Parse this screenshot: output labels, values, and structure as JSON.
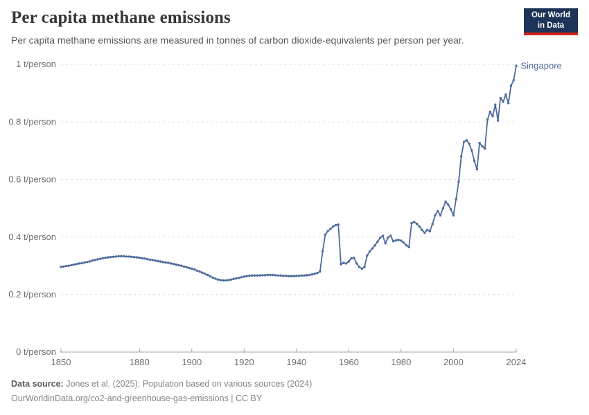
{
  "header": {
    "title": "Per capita methane emissions",
    "subtitle": "Per capita methane emissions are measured in tonnes of carbon dioxide-equivalents per person per year.",
    "logo": {
      "line1": "Our World",
      "line2": "in Data"
    }
  },
  "colors": {
    "series_line": "#4c6a9c",
    "grid_line": "#dcdcdc",
    "axis_line": "#a3a3a3",
    "tick_label": "#6e6e6e",
    "logo_bg": "#1d3458",
    "logo_accent": "#d1231b"
  },
  "chart_data": {
    "type": "line",
    "title": "Per capita methane emissions",
    "unit": "t/person",
    "grid": "dashed-horizontal",
    "xlim": [
      1850,
      2024
    ],
    "ylim": [
      0,
      1
    ],
    "x_ticks": [
      1850,
      1880,
      1900,
      1920,
      1940,
      1960,
      1980,
      2000,
      2024
    ],
    "y_ticks": [
      {
        "value": 0,
        "label": "0 t/person"
      },
      {
        "value": 0.2,
        "label": "0.2 t/person"
      },
      {
        "value": 0.4,
        "label": "0.4 t/person"
      },
      {
        "value": 0.6,
        "label": "0.6 t/person"
      },
      {
        "value": 0.8,
        "label": "0.8 t/person"
      },
      {
        "value": 1,
        "label": "1 t/person"
      }
    ],
    "years": {
      "start": 1850,
      "end": 2024,
      "step": 1
    },
    "series": [
      {
        "name": "Singapore",
        "color": "#4c6a9c",
        "values": [
          0.296,
          0.297,
          0.299,
          0.3,
          0.302,
          0.304,
          0.306,
          0.308,
          0.309,
          0.311,
          0.313,
          0.315,
          0.318,
          0.32,
          0.322,
          0.324,
          0.326,
          0.328,
          0.329,
          0.33,
          0.331,
          0.332,
          0.333,
          0.333,
          0.333,
          0.332,
          0.332,
          0.331,
          0.33,
          0.329,
          0.328,
          0.326,
          0.325,
          0.323,
          0.321,
          0.32,
          0.318,
          0.316,
          0.315,
          0.313,
          0.311,
          0.31,
          0.308,
          0.306,
          0.304,
          0.302,
          0.3,
          0.297,
          0.295,
          0.292,
          0.29,
          0.287,
          0.283,
          0.28,
          0.276,
          0.272,
          0.268,
          0.263,
          0.259,
          0.255,
          0.252,
          0.25,
          0.249,
          0.249,
          0.25,
          0.252,
          0.254,
          0.256,
          0.258,
          0.26,
          0.262,
          0.264,
          0.265,
          0.266,
          0.266,
          0.266,
          0.266,
          0.267,
          0.267,
          0.268,
          0.268,
          0.268,
          0.267,
          0.266,
          0.266,
          0.265,
          0.265,
          0.264,
          0.264,
          0.264,
          0.265,
          0.265,
          0.266,
          0.266,
          0.267,
          0.268,
          0.27,
          0.272,
          0.275,
          0.28,
          0.35,
          0.408,
          0.42,
          0.428,
          0.436,
          0.441,
          0.443,
          0.305,
          0.31,
          0.308,
          0.315,
          0.326,
          0.327,
          0.308,
          0.296,
          0.29,
          0.296,
          0.335,
          0.35,
          0.36,
          0.371,
          0.384,
          0.397,
          0.404,
          0.378,
          0.398,
          0.404,
          0.385,
          0.388,
          0.39,
          0.387,
          0.38,
          0.371,
          0.365,
          0.448,
          0.452,
          0.446,
          0.436,
          0.424,
          0.415,
          0.424,
          0.42,
          0.445,
          0.475,
          0.49,
          0.475,
          0.5,
          0.523,
          0.512,
          0.496,
          0.475,
          0.532,
          0.592,
          0.68,
          0.73,
          0.736,
          0.724,
          0.7,
          0.664,
          0.635,
          0.727,
          0.715,
          0.707,
          0.808,
          0.835,
          0.82,
          0.86,
          0.805,
          0.883,
          0.87,
          0.895,
          0.865,
          0.925,
          0.945,
          0.995
        ]
      }
    ],
    "end_label": "Singapore"
  },
  "footer": {
    "source_label": "Data source:",
    "source_text": "Jones et al. (2025); Population based on various sources (2024)",
    "note_text": "OurWorldinData.org/co2-and-greenhouse-gas-emissions | CC BY"
  }
}
